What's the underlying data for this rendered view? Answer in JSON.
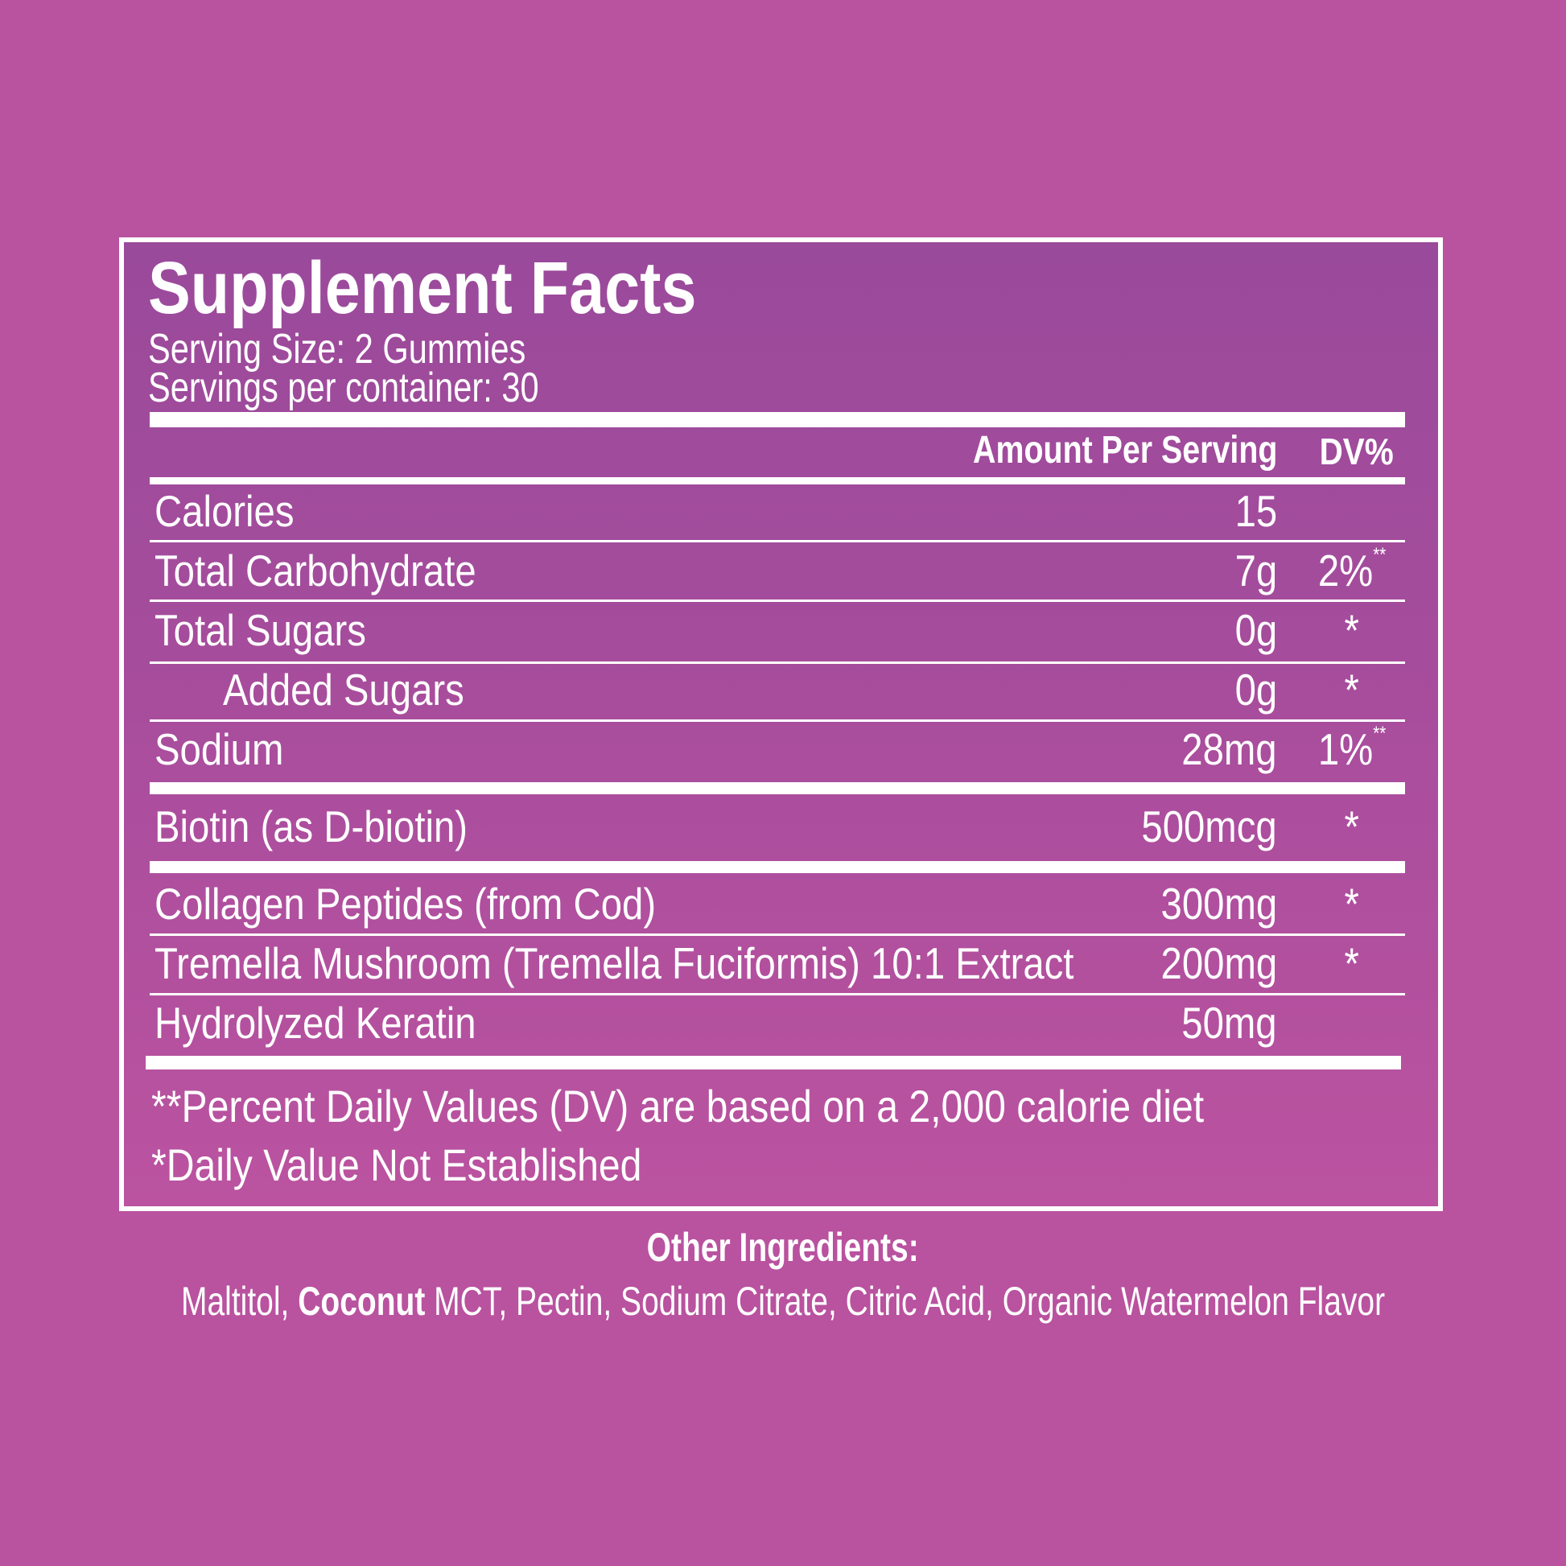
{
  "panel": {
    "title": "Supplement Facts",
    "serving_size": "Serving Size: 2 Gummies",
    "servings_per_container": "Servings per container: 30",
    "header": {
      "amount": "Amount Per Serving",
      "dv": "DV%"
    },
    "rows": [
      {
        "label": "Calories",
        "amount": "15",
        "dv": "",
        "dv_mark": ""
      },
      {
        "label": "Total Carbohydrate",
        "amount": "7g",
        "dv": "2%",
        "dv_mark": "**"
      },
      {
        "label": "Total Sugars",
        "amount": "0g",
        "dv": "*",
        "dv_mark": ""
      },
      {
        "label": "Added Sugars",
        "amount": "0g",
        "dv": "*",
        "dv_mark": ""
      },
      {
        "label": "Sodium",
        "amount": "28mg",
        "dv": "1%",
        "dv_mark": "**"
      },
      {
        "label": "Biotin (as D-biotin)",
        "amount": "500mcg",
        "dv": "*",
        "dv_mark": ""
      },
      {
        "label": "Collagen Peptides (from Cod)",
        "amount": "300mg",
        "dv": "*",
        "dv_mark": ""
      },
      {
        "label": "Tremella Mushroom (Tremella Fuciformis) 10:1 Extract",
        "amount": "200mg",
        "dv": "*",
        "dv_mark": ""
      },
      {
        "label": "Hydrolyzed Keratin",
        "amount": "50mg",
        "dv": "",
        "dv_mark": ""
      }
    ],
    "footnotes": [
      "**Percent Daily Values (DV) are based on a 2,000 calorie diet",
      "*Daily Value Not Established"
    ]
  },
  "other_ingredients": {
    "heading": "Other Ingredients:",
    "first": "Maltitol, ",
    "allergen": "Coconut",
    "rest": " MCT, Pectin, Sodium Citrate, Citric Acid, Organic Watermelon Flavor"
  },
  "colors": {
    "background": "#b9529f",
    "panel_top": "#9a4a9b",
    "panel_bottom": "#bb53a0",
    "text": "#ffffff"
  }
}
